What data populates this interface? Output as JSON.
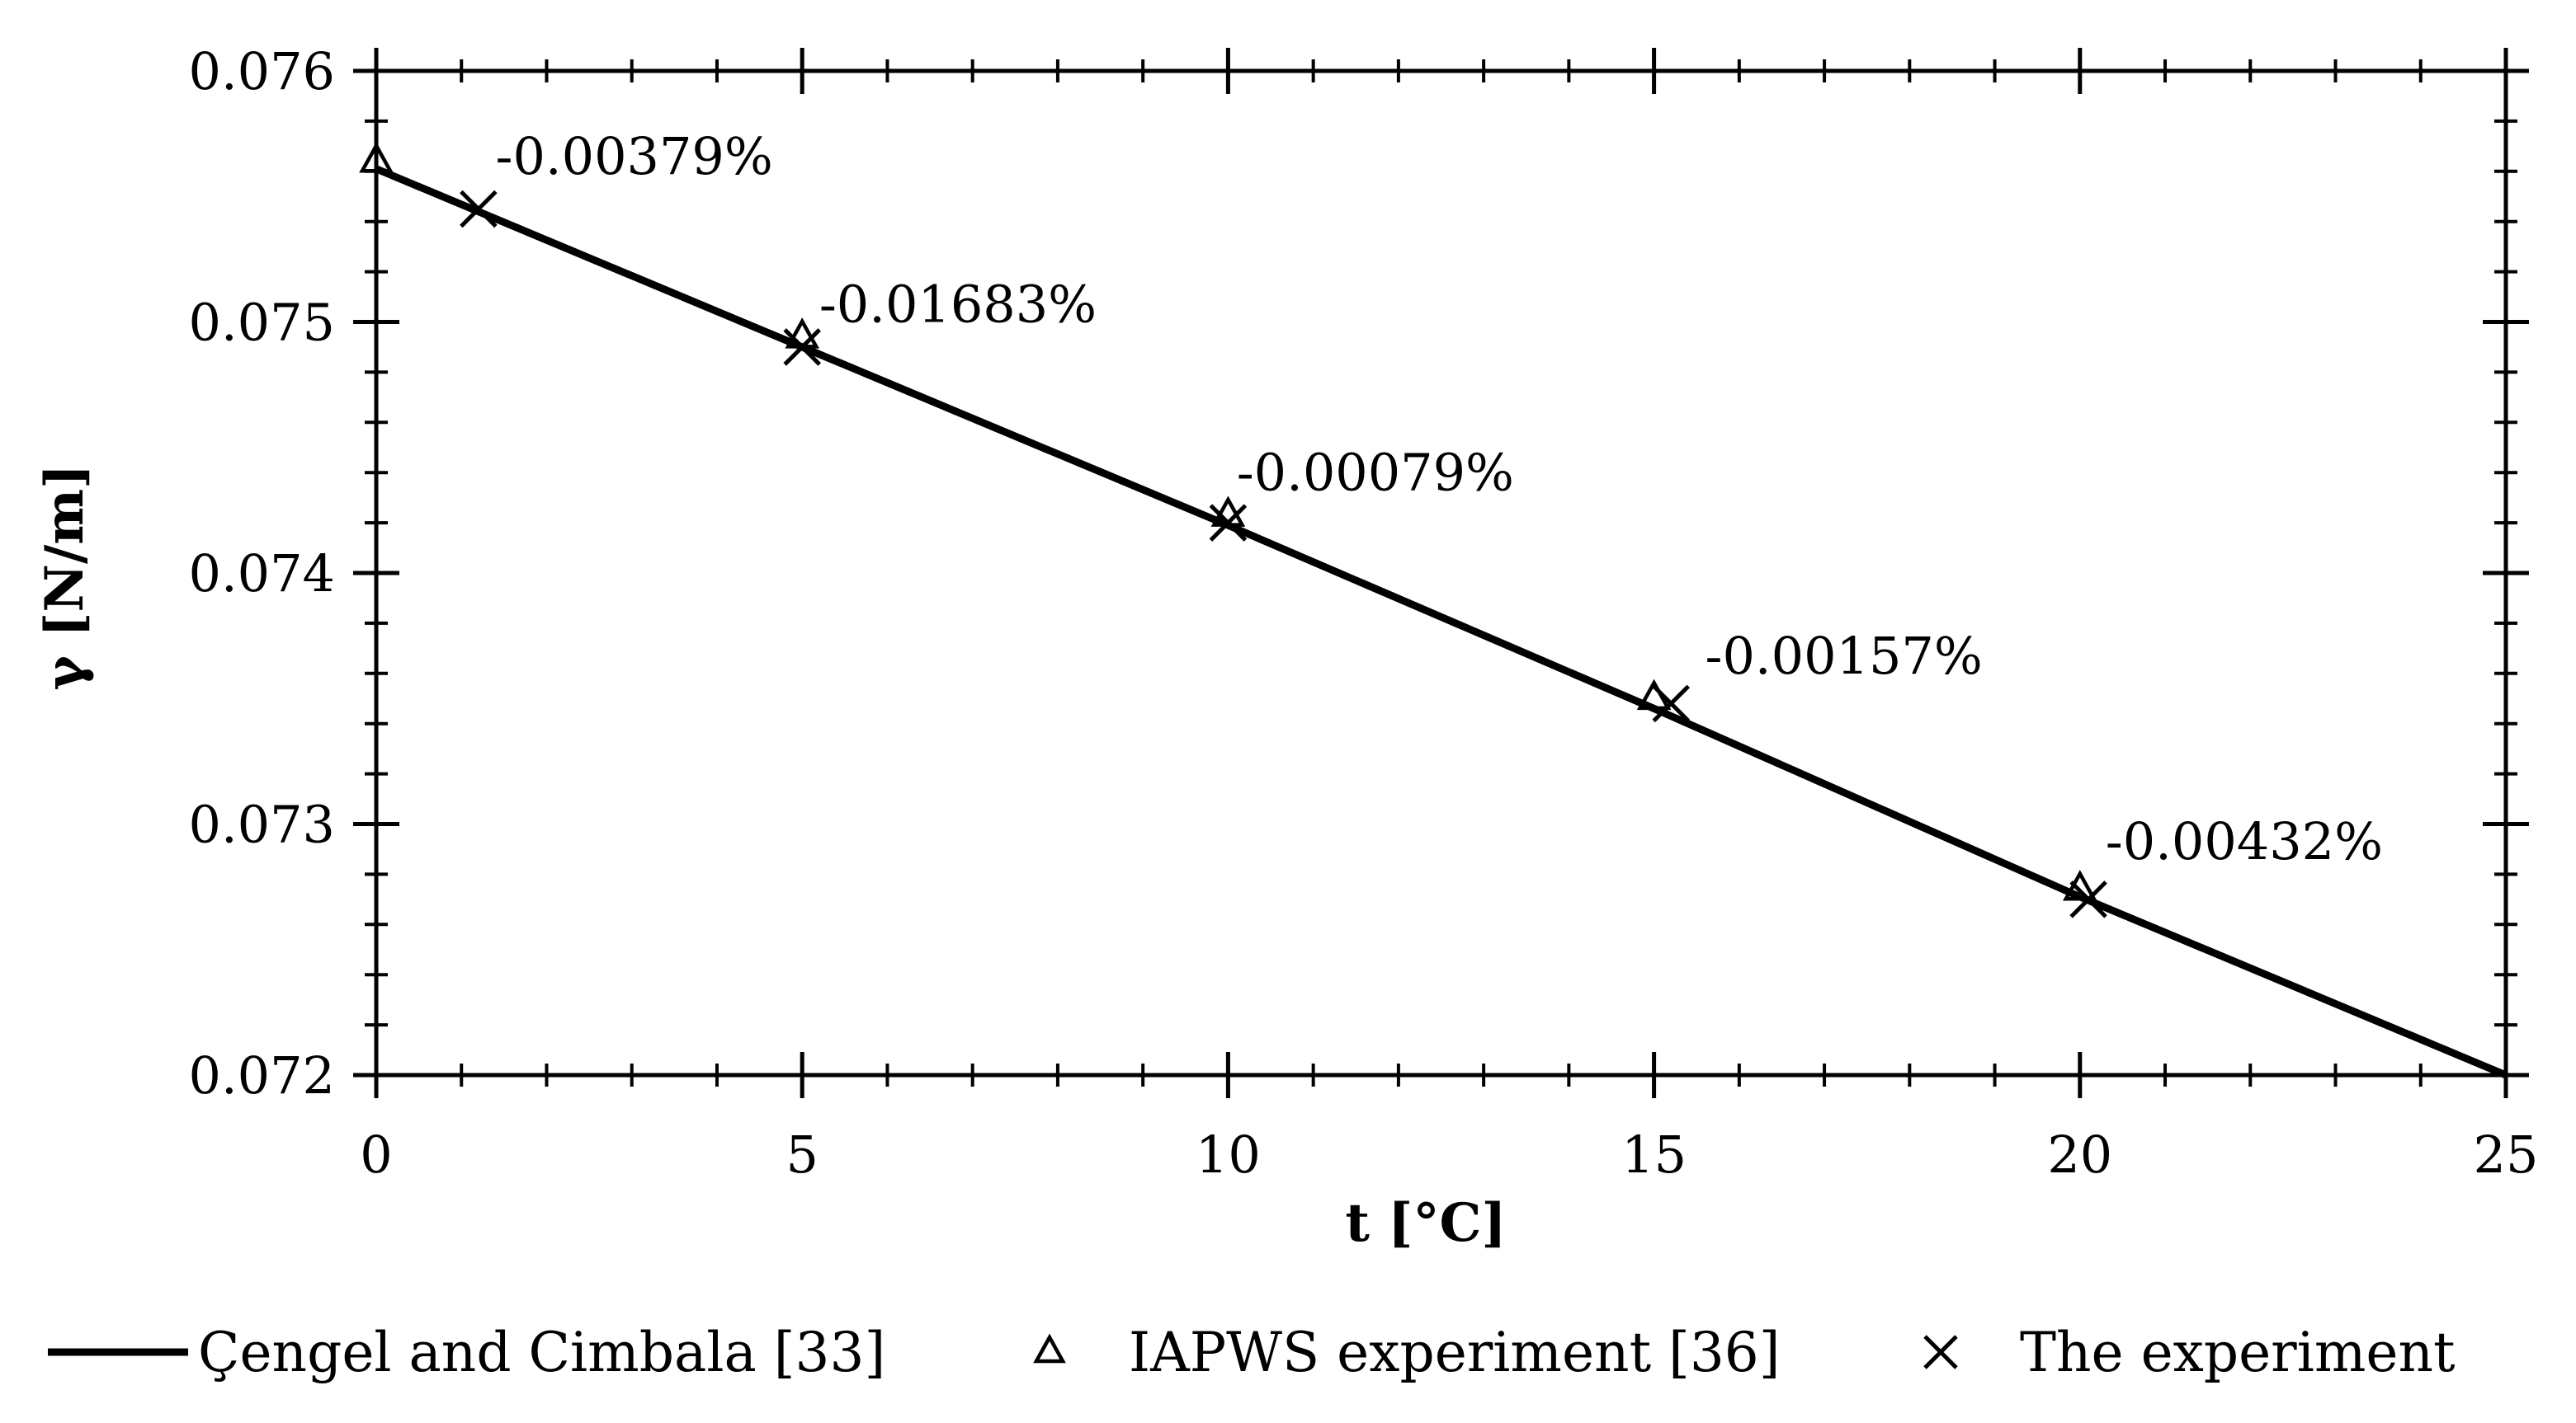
{
  "chart_data": {
    "type": "line",
    "xlabel": "t [°C]",
    "ylabel": "γ [N/m]",
    "xlim": [
      0,
      25
    ],
    "ylim": [
      0.072,
      0.076
    ],
    "x_ticks": [
      0,
      5,
      10,
      15,
      20,
      25
    ],
    "x_tick_labels": [
      "0",
      "5",
      "10",
      "15",
      "20",
      "25"
    ],
    "y_ticks": [
      0.072,
      0.073,
      0.074,
      0.075,
      0.076
    ],
    "y_tick_labels": [
      "0.072",
      "0.073",
      "0.074",
      "0.075",
      "0.076"
    ],
    "grid": false,
    "legend_position": "bottom",
    "series": [
      {
        "name": "Çengel and Cimbala [33]",
        "style": "line",
        "x": [
          0,
          5,
          10,
          15,
          20,
          25
        ],
        "y": [
          0.07561,
          0.0749,
          0.07419,
          0.07346,
          0.07271,
          0.072
        ]
      },
      {
        "name": "IAPWS experiment [36]",
        "style": "triangle",
        "x": [
          0,
          5,
          10,
          15,
          20
        ],
        "y": [
          0.07564,
          0.07494,
          0.07423,
          0.0735,
          0.07274
        ]
      },
      {
        "name": "The experiment",
        "style": "cross",
        "x": [
          1.2,
          5,
          10,
          15.2,
          20.1
        ],
        "y": [
          0.07545,
          0.0749,
          0.0742,
          0.07348,
          0.0727
        ]
      }
    ],
    "annotations": [
      {
        "text": "-0.00379%",
        "x": 1.4,
        "y": 0.07559
      },
      {
        "text": "-0.01683%",
        "x": 5.2,
        "y": 0.075
      },
      {
        "text": "-0.00079%",
        "x": 10.1,
        "y": 0.07433
      },
      {
        "text": "-0.00157%",
        "x": 15.6,
        "y": 0.0736
      },
      {
        "text": "-0.00432%",
        "x": 20.3,
        "y": 0.07286
      }
    ]
  }
}
